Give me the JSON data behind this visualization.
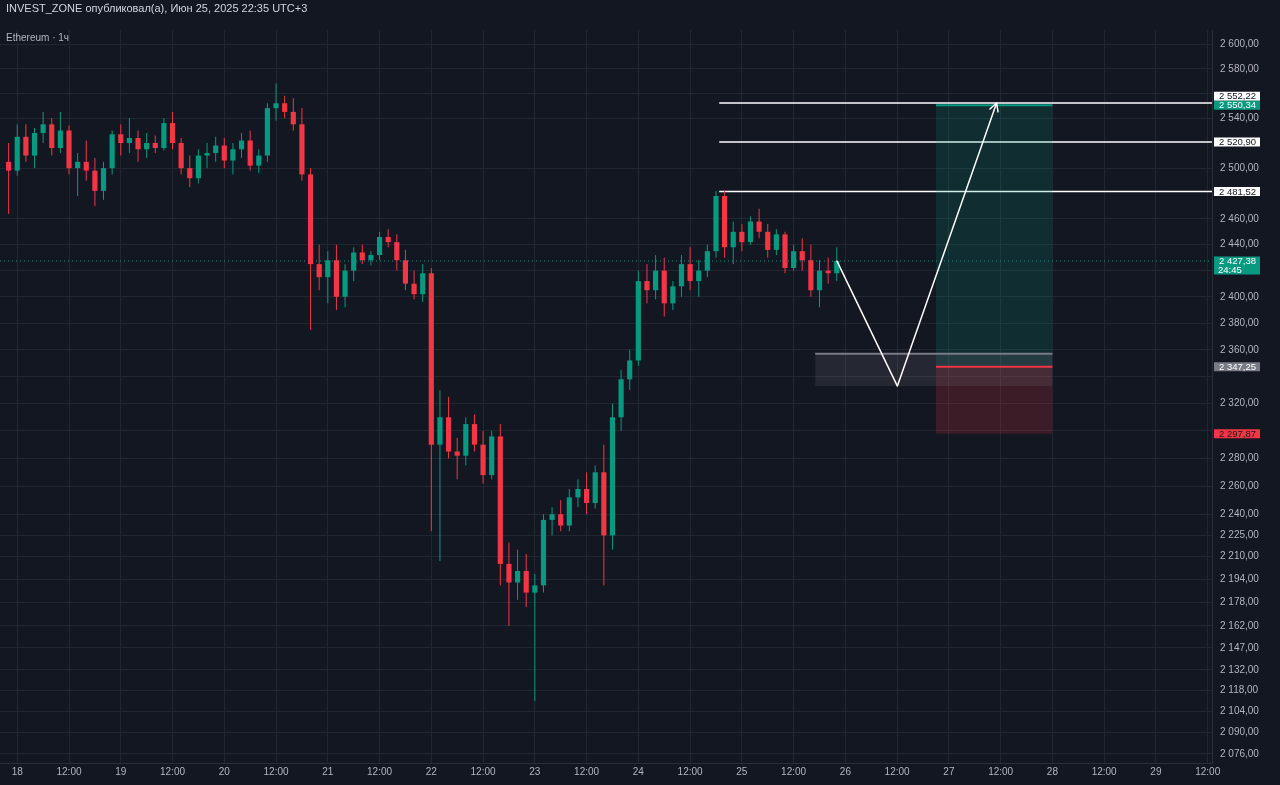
{
  "chart_data": {
    "type": "candlestick",
    "title": "Ethereum · 1ч",
    "subtitle": "INVEST_ZONE опубликовал(а), Июн 25, 2025 22:35 UTC+3",
    "x": [
      "2025-06-17T22:00",
      "2025-06-18T00:00",
      "2025-06-18T02:00",
      "2025-06-18T04:00",
      "2025-06-18T06:00",
      "2025-06-18T08:00",
      "2025-06-18T10:00",
      "2025-06-18T12:00",
      "2025-06-18T14:00",
      "2025-06-18T16:00",
      "2025-06-18T18:00",
      "2025-06-18T20:00",
      "2025-06-18T22:00",
      "2025-06-19T00:00",
      "2025-06-19T02:00",
      "2025-06-19T04:00",
      "2025-06-19T06:00",
      "2025-06-19T08:00",
      "2025-06-19T10:00",
      "2025-06-19T12:00",
      "2025-06-19T14:00",
      "2025-06-19T16:00",
      "2025-06-19T18:00",
      "2025-06-19T20:00",
      "2025-06-19T22:00",
      "2025-06-20T00:00",
      "2025-06-20T02:00",
      "2025-06-20T04:00",
      "2025-06-20T06:00",
      "2025-06-20T08:00",
      "2025-06-20T10:00",
      "2025-06-20T12:00",
      "2025-06-20T14:00",
      "2025-06-20T16:00",
      "2025-06-20T18:00",
      "2025-06-20T20:00",
      "2025-06-20T22:00",
      "2025-06-21T00:00",
      "2025-06-21T02:00",
      "2025-06-21T04:00",
      "2025-06-21T06:00",
      "2025-06-21T08:00",
      "2025-06-21T10:00",
      "2025-06-21T12:00",
      "2025-06-21T14:00",
      "2025-06-21T16:00",
      "2025-06-21T18:00",
      "2025-06-21T20:00",
      "2025-06-21T22:00",
      "2025-06-22T00:00",
      "2025-06-22T02:00",
      "2025-06-22T04:00",
      "2025-06-22T06:00",
      "2025-06-22T08:00",
      "2025-06-22T10:00",
      "2025-06-22T12:00",
      "2025-06-22T14:00",
      "2025-06-22T16:00",
      "2025-06-22T18:00",
      "2025-06-22T20:00",
      "2025-06-22T22:00",
      "2025-06-23T00:00",
      "2025-06-23T02:00",
      "2025-06-23T04:00",
      "2025-06-23T06:00",
      "2025-06-23T08:00",
      "2025-06-23T10:00",
      "2025-06-23T12:00",
      "2025-06-23T14:00",
      "2025-06-23T16:00",
      "2025-06-23T18:00",
      "2025-06-23T20:00",
      "2025-06-23T22:00",
      "2025-06-24T00:00",
      "2025-06-24T02:00",
      "2025-06-24T04:00",
      "2025-06-24T06:00",
      "2025-06-24T08:00",
      "2025-06-24T10:00",
      "2025-06-24T12:00",
      "2025-06-24T14:00",
      "2025-06-24T16:00",
      "2025-06-24T18:00",
      "2025-06-24T20:00",
      "2025-06-24T22:00",
      "2025-06-25T00:00",
      "2025-06-25T02:00",
      "2025-06-25T04:00",
      "2025-06-25T06:00",
      "2025-06-25T08:00",
      "2025-06-25T10:00",
      "2025-06-25T12:00",
      "2025-06-25T14:00",
      "2025-06-25T16:00",
      "2025-06-25T18:00",
      "2025-06-25T20:00",
      "2025-06-25T22:00"
    ],
    "ohlc": [
      [
        2505,
        2520,
        2464,
        2498
      ],
      [
        2498,
        2535,
        2494,
        2525
      ],
      [
        2525,
        2535,
        2505,
        2510
      ],
      [
        2510,
        2532,
        2500,
        2528
      ],
      [
        2528,
        2545,
        2520,
        2535
      ],
      [
        2535,
        2540,
        2510,
        2516
      ],
      [
        2516,
        2545,
        2512,
        2530
      ],
      [
        2530,
        2534,
        2495,
        2500
      ],
      [
        2500,
        2512,
        2478,
        2505
      ],
      [
        2505,
        2522,
        2490,
        2498
      ],
      [
        2498,
        2508,
        2470,
        2482
      ],
      [
        2482,
        2505,
        2475,
        2500
      ],
      [
        2500,
        2530,
        2495,
        2527
      ],
      [
        2527,
        2535,
        2510,
        2520
      ],
      [
        2520,
        2540,
        2512,
        2524
      ],
      [
        2524,
        2530,
        2505,
        2515
      ],
      [
        2515,
        2528,
        2508,
        2520
      ],
      [
        2520,
        2526,
        2512,
        2516
      ],
      [
        2516,
        2540,
        2514,
        2536
      ],
      [
        2536,
        2545,
        2515,
        2520
      ],
      [
        2520,
        2524,
        2495,
        2500
      ],
      [
        2500,
        2510,
        2485,
        2492
      ],
      [
        2492,
        2515,
        2488,
        2510
      ],
      [
        2510,
        2520,
        2500,
        2512
      ],
      [
        2512,
        2525,
        2505,
        2518
      ],
      [
        2518,
        2524,
        2500,
        2506
      ],
      [
        2506,
        2520,
        2495,
        2515
      ],
      [
        2515,
        2528,
        2508,
        2522
      ],
      [
        2522,
        2530,
        2498,
        2502
      ],
      [
        2502,
        2515,
        2496,
        2510
      ],
      [
        2510,
        2552,
        2505,
        2548
      ],
      [
        2548,
        2568,
        2538,
        2552
      ],
      [
        2552,
        2558,
        2540,
        2545
      ],
      [
        2545,
        2556,
        2530,
        2535
      ],
      [
        2535,
        2548,
        2490,
        2495
      ],
      [
        2495,
        2500,
        2375,
        2425
      ],
      [
        2425,
        2440,
        2405,
        2415
      ],
      [
        2415,
        2435,
        2395,
        2428
      ],
      [
        2428,
        2440,
        2390,
        2400
      ],
      [
        2400,
        2425,
        2392,
        2420
      ],
      [
        2420,
        2438,
        2412,
        2434
      ],
      [
        2434,
        2440,
        2425,
        2428
      ],
      [
        2428,
        2435,
        2424,
        2432
      ],
      [
        2432,
        2450,
        2428,
        2446
      ],
      [
        2446,
        2452,
        2438,
        2442
      ],
      [
        2442,
        2448,
        2420,
        2428
      ],
      [
        2428,
        2436,
        2405,
        2410
      ],
      [
        2410,
        2420,
        2398,
        2402
      ],
      [
        2402,
        2425,
        2396,
        2418
      ],
      [
        2418,
        2422,
        2228,
        2290
      ],
      [
        2290,
        2330,
        2207,
        2310
      ],
      [
        2310,
        2325,
        2280,
        2285
      ],
      [
        2285,
        2295,
        2265,
        2282
      ],
      [
        2282,
        2310,
        2275,
        2305
      ],
      [
        2305,
        2312,
        2285,
        2290
      ],
      [
        2290,
        2300,
        2262,
        2268
      ],
      [
        2268,
        2300,
        2265,
        2296
      ],
      [
        2296,
        2305,
        2190,
        2205
      ],
      [
        2205,
        2220,
        2162,
        2192
      ],
      [
        2192,
        2215,
        2180,
        2200
      ],
      [
        2200,
        2212,
        2175,
        2185
      ],
      [
        2185,
        2198,
        2111,
        2190
      ],
      [
        2190,
        2240,
        2185,
        2236
      ],
      [
        2236,
        2245,
        2225,
        2240
      ],
      [
        2240,
        2250,
        2228,
        2232
      ],
      [
        2232,
        2258,
        2228,
        2252
      ],
      [
        2252,
        2265,
        2245,
        2258
      ],
      [
        2258,
        2270,
        2240,
        2248
      ],
      [
        2248,
        2275,
        2244,
        2270
      ],
      [
        2270,
        2290,
        2190,
        2225
      ],
      [
        2225,
        2320,
        2215,
        2310
      ],
      [
        2310,
        2345,
        2300,
        2338
      ],
      [
        2338,
        2360,
        2330,
        2352
      ],
      [
        2352,
        2420,
        2348,
        2412
      ],
      [
        2412,
        2425,
        2395,
        2405
      ],
      [
        2405,
        2432,
        2398,
        2420
      ],
      [
        2420,
        2430,
        2385,
        2395
      ],
      [
        2395,
        2412,
        2390,
        2408
      ],
      [
        2408,
        2432,
        2400,
        2425
      ],
      [
        2425,
        2438,
        2405,
        2412
      ],
      [
        2412,
        2428,
        2400,
        2420
      ],
      [
        2420,
        2440,
        2415,
        2435
      ],
      [
        2435,
        2482,
        2430,
        2478
      ],
      [
        2478,
        2482,
        2430,
        2438
      ],
      [
        2438,
        2458,
        2425,
        2450
      ],
      [
        2450,
        2456,
        2435,
        2442
      ],
      [
        2442,
        2462,
        2440,
        2458
      ],
      [
        2458,
        2468,
        2445,
        2450
      ],
      [
        2450,
        2456,
        2430,
        2436
      ],
      [
        2436,
        2452,
        2432,
        2448
      ],
      [
        2448,
        2450,
        2418,
        2422
      ],
      [
        2422,
        2440,
        2420,
        2435
      ],
      [
        2435,
        2445,
        2420,
        2428
      ],
      [
        2428,
        2440,
        2400,
        2405
      ],
      [
        2405,
        2428,
        2392,
        2420
      ],
      [
        2420,
        2430,
        2410,
        2418
      ],
      [
        2418,
        2438,
        2412,
        2427.38
      ]
    ],
    "series": [
      {
        "type": "line",
        "color": "#787b86",
        "x": [
          "2025-06-25T17:00",
          "2025-06-28T00:00"
        ],
        "values": [
          2357,
          2357
        ],
        "upper": [
          2357,
          2357
        ],
        "lower": [
          2333,
          2333
        ]
      },
      {
        "type": "line",
        "color": "#089981",
        "x": [
          "2025-06-26T21:00",
          "2025-06-28T00:00"
        ],
        "values": [
          2550.34,
          2550.34
        ],
        "upper": [
          2550.34,
          2550.34
        ],
        "lower": [
          2347.25,
          2347.25
        ]
      },
      {
        "type": "line",
        "color": "#f23645",
        "x": [
          "2025-06-26T21:00",
          "2025-06-28T00:00"
        ],
        "values": [
          2347.25,
          2347.25
        ],
        "upper": [
          2347.25,
          2347.25
        ],
        "lower": [
          2297.87,
          2297.87
        ]
      },
      {
        "type": "line",
        "color": "#ffffff",
        "x": [
          "2025-06-24T18:45",
          "2025-06-29T13:00"
        ],
        "values": [
          2552.22,
          2552.22
        ]
      },
      {
        "type": "line",
        "color": "#ffffff",
        "x": [
          "2025-06-24T18:45",
          "2025-06-29T13:00"
        ],
        "values": [
          2520.9,
          2520.9
        ]
      },
      {
        "type": "line",
        "color": "#ffffff",
        "x": [
          "2025-06-24T18:45",
          "2025-06-29T13:00"
        ],
        "values": [
          2481.52,
          2481.52
        ]
      }
    ],
    "ref_lines": [
      {
        "axis": "y",
        "value": 2427.38,
        "label": "2 427,38",
        "color": "#089981",
        "line_style": "dotted"
      }
    ],
    "annotations": [
      "24:45"
    ],
    "xlim": [
      "2025-06-17T20:00",
      "2025-06-29T13:00"
    ],
    "xticks": [
      {
        "value": "2025-06-18",
        "label": "18"
      },
      {
        "value": "2025-06-18T12:00",
        "label": "12:00"
      },
      {
        "value": "2025-06-19",
        "label": "19"
      },
      {
        "value": "2025-06-19T12:00",
        "label": "12:00"
      },
      {
        "value": "2025-06-20",
        "label": "20"
      },
      {
        "value": "2025-06-20T12:00",
        "label": "12:00"
      },
      {
        "value": "2025-06-21",
        "label": "21"
      },
      {
        "value": "2025-06-21T12:00",
        "label": "12:00"
      },
      {
        "value": "2025-06-22",
        "label": "22"
      },
      {
        "value": "2025-06-22T12:00",
        "label": "12:00"
      },
      {
        "value": "2025-06-23",
        "label": "23"
      },
      {
        "value": "2025-06-23T12:00",
        "label": "12:00"
      },
      {
        "value": "2025-06-24",
        "label": "24"
      },
      {
        "value": "2025-06-24T12:00",
        "label": "12:00"
      },
      {
        "value": "2025-06-25",
        "label": "25"
      },
      {
        "value": "2025-06-25T12:00",
        "label": "12:00"
      },
      {
        "value": "2025-06-26",
        "label": "26"
      },
      {
        "value": "2025-06-26T12:00",
        "label": "12:00"
      },
      {
        "value": "2025-06-27",
        "label": "27"
      },
      {
        "value": "2025-06-27T12:00",
        "label": "12:00"
      },
      {
        "value": "2025-06-28",
        "label": "28"
      },
      {
        "value": "2025-06-28T12:00",
        "label": "12:00"
      },
      {
        "value": "2025-06-29",
        "label": "29"
      },
      {
        "value": "2025-06-29T12:00",
        "label": "12:00"
      }
    ],
    "ylim": [
      2070,
      2612
    ],
    "yticks": [
      {
        "value": 2552.22,
        "label": "2 552,22"
      },
      {
        "value": 2550.34,
        "label": "2 550,34"
      },
      {
        "value": 2520.9,
        "label": "2 520,90"
      },
      {
        "value": 2481.52,
        "label": "2 481,52"
      },
      {
        "value": 2347.25,
        "label": "2 347,25"
      },
      {
        "value": 2297.87,
        "label": "2 297,87"
      },
      {
        "value": 2600,
        "label": "2 600,00"
      },
      {
        "value": 2580,
        "label": "2 580,00"
      },
      {
        "value": 2560,
        "label": null
      },
      {
        "value": 2540,
        "label": "2 540,00"
      },
      {
        "value": 2500,
        "label": "2 500,00"
      },
      {
        "value": 2460,
        "label": "2 460,00"
      },
      {
        "value": 2440,
        "label": "2 440,00"
      },
      {
        "value": 2420,
        "label": null
      },
      {
        "value": 2400,
        "label": "2 400,00"
      },
      {
        "value": 2380,
        "label": "2 380,00"
      },
      {
        "value": 2360,
        "label": "2 360,00"
      },
      {
        "value": 2340,
        "label": null
      },
      {
        "value": 2320,
        "label": "2 320,00"
      },
      {
        "value": 2300,
        "label": null
      },
      {
        "value": 2280,
        "label": "2 280,00"
      },
      {
        "value": 2260,
        "label": "2 260,00"
      },
      {
        "value": 2240,
        "label": "2 240,00"
      },
      {
        "value": 2225,
        "label": "2 225,00"
      },
      {
        "value": 2210,
        "label": "2 210,00"
      },
      {
        "value": 2194,
        "label": "2 194,00"
      },
      {
        "value": 2178,
        "label": "2 178,00"
      },
      {
        "value": 2162,
        "label": "2 162,00"
      },
      {
        "value": 2147,
        "label": "2 147,00"
      },
      {
        "value": 2132,
        "label": "2 132,00"
      },
      {
        "value": 2118,
        "label": "2 118,00"
      },
      {
        "value": 2104,
        "label": "2 104,00"
      },
      {
        "value": 2090,
        "label": "2 090,00"
      },
      {
        "value": 2076,
        "label": "2 076,00"
      }
    ],
    "log": "y",
    "grid": true,
    "legend": false
  }
}
